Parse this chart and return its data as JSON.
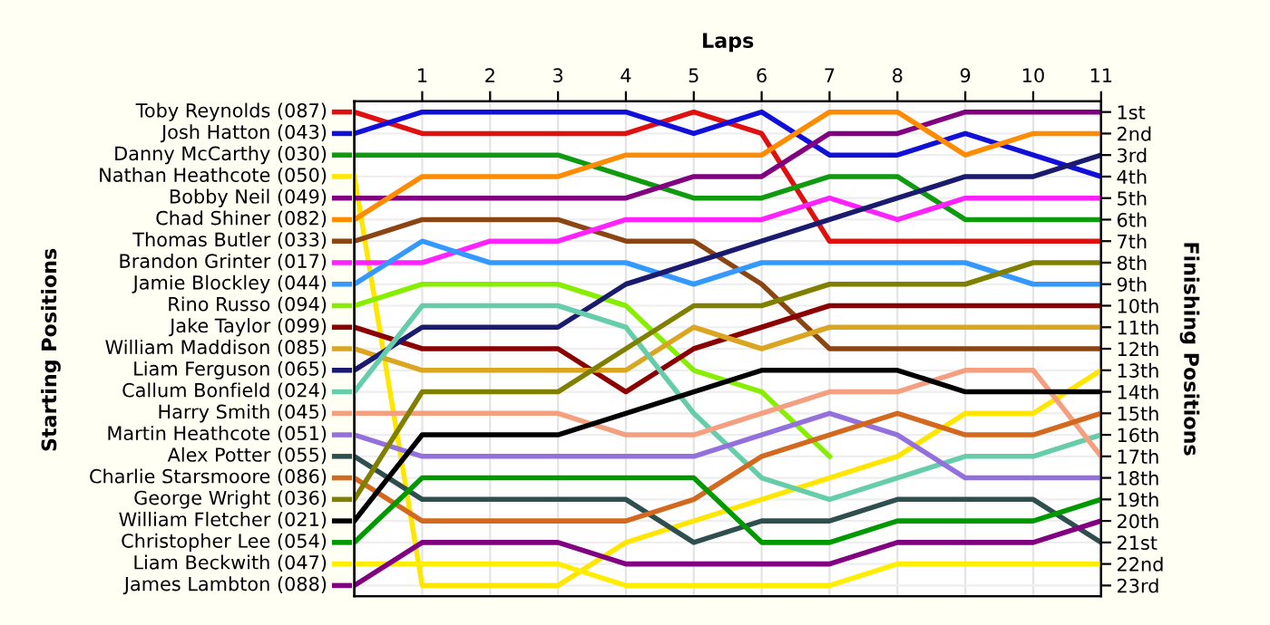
{
  "chart_data": {
    "type": "line",
    "xlabel": "Laps",
    "y2label": "Finishing Positions",
    "annotations": [
      "Starting Positions"
    ],
    "legend": "left",
    "x": [
      0,
      1,
      2,
      3,
      4,
      5,
      6,
      7,
      8,
      9,
      10,
      11
    ],
    "xlim": [
      0,
      11
    ],
    "xticks": [
      1,
      2,
      3,
      4,
      5,
      6,
      7,
      8,
      9,
      10,
      11
    ],
    "y2lim": [
      23.5,
      0.5
    ],
    "y2ticks": [
      {
        "value": 1,
        "label": "1st"
      },
      {
        "value": 2,
        "label": "2nd"
      },
      {
        "value": 3,
        "label": "3rd"
      },
      {
        "value": 4,
        "label": "4th"
      },
      {
        "value": 5,
        "label": "5th"
      },
      {
        "value": 6,
        "label": "6th"
      },
      {
        "value": 7,
        "label": "7th"
      },
      {
        "value": 8,
        "label": "8th"
      },
      {
        "value": 9,
        "label": "9th"
      },
      {
        "value": 10,
        "label": "10th"
      },
      {
        "value": 11,
        "label": "11th"
      },
      {
        "value": 12,
        "label": "12th"
      },
      {
        "value": 13,
        "label": "13th"
      },
      {
        "value": 14,
        "label": "14th"
      },
      {
        "value": 15,
        "label": "15th"
      },
      {
        "value": 16,
        "label": "16th"
      },
      {
        "value": 17,
        "label": "17th"
      },
      {
        "value": 18,
        "label": "18th"
      },
      {
        "value": 19,
        "label": "19th"
      },
      {
        "value": 20,
        "label": "20th"
      },
      {
        "value": 21,
        "label": "21st"
      },
      {
        "value": 22,
        "label": "22nd"
      },
      {
        "value": 23,
        "label": "23rd"
      }
    ],
    "grid": true,
    "series": [
      {
        "name": "Toby Reynolds (087)",
        "axis": "y2",
        "color": "#e01010",
        "values": [
          1,
          2,
          2,
          2,
          2,
          1,
          2,
          7,
          7,
          7,
          7,
          7
        ]
      },
      {
        "name": "Josh Hatton (043)",
        "axis": "y2",
        "color": "#1010d8",
        "values": [
          2,
          1,
          1,
          1,
          1,
          2,
          1,
          3,
          3,
          2,
          3,
          4
        ]
      },
      {
        "name": "Danny McCarthy (030)",
        "axis": "y2",
        "color": "#109a10",
        "values": [
          3,
          3,
          3,
          3,
          4,
          5,
          5,
          4,
          4,
          6,
          6,
          6
        ]
      },
      {
        "name": "Nathan Heathcote (050)",
        "axis": "y2",
        "color": "#ffe600",
        "values": [
          4,
          23,
          23,
          23,
          21,
          20,
          19,
          18,
          17,
          15,
          15,
          13
        ]
      },
      {
        "name": "Bobby Neil (049)",
        "axis": "y2",
        "color": "#800080",
        "values": [
          5,
          5,
          5,
          5,
          5,
          4,
          4,
          2,
          2,
          1,
          1,
          1
        ]
      },
      {
        "name": "Chad Shiner (082)",
        "axis": "y2",
        "color": "#ff8c00",
        "values": [
          6,
          4,
          4,
          4,
          3,
          3,
          3,
          1,
          1,
          3,
          2,
          2
        ]
      },
      {
        "name": "Thomas Butler (033)",
        "axis": "y2",
        "color": "#8b4513",
        "values": [
          7,
          6,
          6,
          6,
          7,
          7,
          9,
          12,
          12,
          12,
          12,
          12
        ]
      },
      {
        "name": "Brandon Grinter (017)",
        "axis": "y2",
        "color": "#ff22ff",
        "values": [
          8,
          8,
          7,
          7,
          6,
          6,
          6,
          5,
          6,
          5,
          5,
          5
        ]
      },
      {
        "name": "Jamie Blockley (044)",
        "axis": "y2",
        "color": "#3399ff",
        "values": [
          9,
          7,
          8,
          8,
          8,
          9,
          8,
          8,
          8,
          8,
          9,
          9
        ]
      },
      {
        "name": "Rino Russo (094)",
        "axis": "y2",
        "color": "#88ee00",
        "values": [
          10,
          9,
          9,
          9,
          10,
          13,
          14,
          17,
          null,
          null,
          null,
          null
        ]
      },
      {
        "name": "Jake Taylor (099)",
        "axis": "y2",
        "color": "#8b0000",
        "values": [
          11,
          12,
          12,
          12,
          14,
          12,
          11,
          10,
          10,
          10,
          10,
          10
        ]
      },
      {
        "name": "William Maddison (085)",
        "axis": "y2",
        "color": "#daa520",
        "values": [
          12,
          13,
          13,
          13,
          13,
          11,
          12,
          11,
          11,
          11,
          11,
          11
        ]
      },
      {
        "name": "Liam Ferguson (065)",
        "axis": "y2",
        "color": "#1a1a6e",
        "values": [
          13,
          11,
          11,
          11,
          9,
          8,
          7,
          6,
          5,
          4,
          4,
          3
        ]
      },
      {
        "name": "Callum Bonfield (024)",
        "axis": "y2",
        "color": "#66cdaa",
        "values": [
          14,
          10,
          10,
          10,
          11,
          15,
          18,
          19,
          18,
          17,
          17,
          16
        ]
      },
      {
        "name": "Harry Smith (045)",
        "axis": "y2",
        "color": "#f4a080",
        "values": [
          15,
          15,
          15,
          15,
          16,
          16,
          15,
          14,
          14,
          13,
          13,
          17
        ]
      },
      {
        "name": "Martin Heathcote (051)",
        "axis": "y2",
        "color": "#9370db",
        "values": [
          16,
          17,
          17,
          17,
          17,
          17,
          16,
          15,
          16,
          18,
          18,
          18
        ]
      },
      {
        "name": "Alex Potter (055)",
        "axis": "y2",
        "color": "#2f4f4f",
        "values": [
          17,
          19,
          19,
          19,
          19,
          21,
          20,
          20,
          19,
          19,
          19,
          21
        ]
      },
      {
        "name": "Charlie Starsmoore (086)",
        "axis": "y2",
        "color": "#d2691e",
        "values": [
          18,
          20,
          20,
          20,
          20,
          19,
          17,
          16,
          15,
          16,
          16,
          15
        ]
      },
      {
        "name": "George Wright (036)",
        "axis": "y2",
        "color": "#808000",
        "values": [
          19,
          14,
          14,
          14,
          12,
          10,
          10,
          9,
          9,
          9,
          8,
          8
        ]
      },
      {
        "name": "William Fletcher (021)",
        "axis": "y2",
        "color": "#000000",
        "values": [
          20,
          16,
          16,
          16,
          15,
          14,
          13,
          13,
          13,
          14,
          14,
          14
        ]
      },
      {
        "name": "Christopher Lee (054)",
        "axis": "y2",
        "color": "#009900",
        "values": [
          21,
          18,
          18,
          18,
          18,
          18,
          21,
          21,
          20,
          20,
          20,
          19
        ]
      },
      {
        "name": "Liam Beckwith (047)",
        "axis": "y2",
        "color": "#ffee00",
        "values": [
          22,
          22,
          22,
          22,
          23,
          23,
          23,
          23,
          22,
          22,
          22,
          22
        ]
      },
      {
        "name": "James Lambton (088)",
        "axis": "y2",
        "color": "#800080",
        "values": [
          23,
          21,
          21,
          21,
          22,
          22,
          22,
          22,
          21,
          21,
          21,
          20
        ]
      }
    ]
  }
}
